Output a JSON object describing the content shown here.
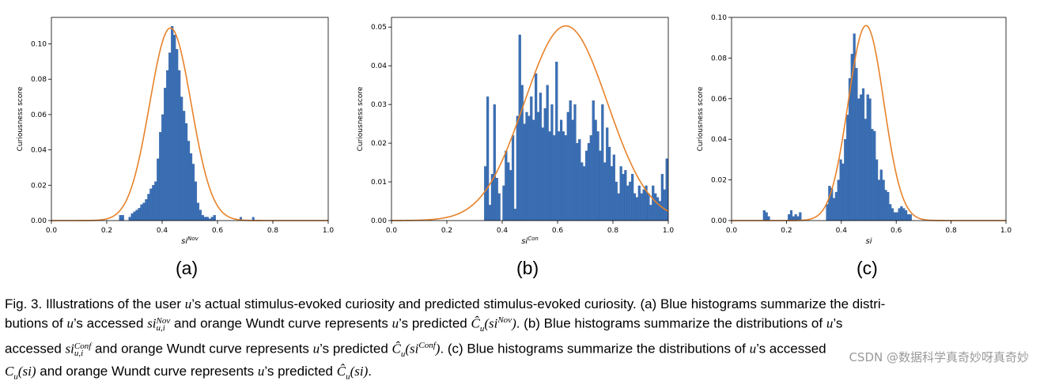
{
  "chart_data": [
    {
      "type": "bar",
      "panel": "(a)",
      "ylabel": "Curiousness score",
      "xlabel_base": "si",
      "xlabel_sup": "Nov",
      "xlim": [
        0.0,
        1.0
      ],
      "ylim": [
        0.0,
        0.115
      ],
      "xticks": [
        "0.0",
        "0.2",
        "0.4",
        "0.6",
        "0.8",
        "1.0"
      ],
      "yticks": [
        "0.00",
        "0.02",
        "0.04",
        "0.06",
        "0.08",
        "0.10"
      ],
      "hist_x0": 0.245,
      "bin_width": 0.0085,
      "hist_values": [
        0.003,
        0.003,
        0,
        0,
        0.002,
        0.004,
        0.005,
        0.006,
        0.007,
        0.009,
        0.01,
        0.012,
        0.015,
        0.018,
        0.02,
        0.022,
        0.035,
        0.05,
        0.06,
        0.075,
        0.085,
        0.095,
        0.11,
        0.105,
        0.097,
        0.085,
        0.07,
        0.062,
        0.055,
        0.045,
        0.038,
        0.032,
        0.022,
        0.01,
        0.006,
        0.003,
        0.002,
        0.002,
        0.001,
        0.002,
        0.003
      ],
      "extra_bars": [
        {
          "x": 0.68,
          "v": 0.002
        },
        {
          "x": 0.725,
          "v": 0.002
        }
      ],
      "curve": {
        "peak": 0.109,
        "mu": 0.43,
        "sigma": 0.075
      }
    },
    {
      "type": "bar",
      "panel": "(b)",
      "ylabel": "Curiousness score",
      "xlabel_base": "si",
      "xlabel_sup": "Con",
      "xlim": [
        0.0,
        1.0
      ],
      "ylim": [
        0.0,
        0.0525
      ],
      "xticks": [
        "0.0",
        "0.2",
        "0.4",
        "0.6",
        "0.8",
        "1.0"
      ],
      "yticks": [
        "0.00",
        "0.01",
        "0.02",
        "0.03",
        "0.04",
        "0.05"
      ],
      "hist_x0": 0.335,
      "bin_width": 0.0083,
      "hist_values": [
        0.014,
        0.032,
        0.004,
        0.012,
        0.03,
        0.011,
        0.007,
        0.0,
        0.009,
        0.018,
        0.015,
        0.013,
        0.022,
        0.003,
        0.027,
        0.048,
        0.035,
        0.025,
        0.028,
        0.027,
        0.032,
        0.026,
        0.038,
        0.028,
        0.033,
        0.024,
        0.029,
        0.035,
        0.023,
        0.03,
        0.022,
        0.041,
        0.023,
        0.026,
        0.023,
        0.022,
        0.028,
        0.031,
        0.026,
        0.03,
        0.02,
        0.021,
        0.015,
        0.014,
        0.018,
        0.02,
        0.022,
        0.031,
        0.026,
        0.023,
        0.018,
        0.03,
        0.015,
        0.024,
        0.019,
        0.014,
        0.017,
        0.01,
        0.007,
        0.014,
        0.012,
        0.013,
        0.009,
        0.01,
        0.012,
        0.007,
        0.006,
        0.009,
        0.007,
        0.008,
        0.009,
        0.007,
        0.004,
        0.009,
        0.007,
        0.006,
        0.005,
        0.012,
        0.008,
        0.016
      ],
      "curve": {
        "peak": 0.0503,
        "mu": 0.63,
        "sigma": 0.15
      }
    },
    {
      "type": "bar",
      "panel": "(c)",
      "ylabel": "Curiousness score",
      "xlabel_base": "si",
      "xlabel_sup": "",
      "xlim": [
        0.0,
        1.0
      ],
      "ylim": [
        0.0,
        0.1
      ],
      "xticks": [
        "0.0",
        "0.2",
        "0.4",
        "0.6",
        "0.8",
        "1.0"
      ],
      "yticks": [
        "0.00",
        "0.02",
        "0.04",
        "0.06",
        "0.08",
        "0.10"
      ],
      "hist_x0": 0.115,
      "bin_width": 0.0082,
      "hist_values": [
        0.005,
        0.004,
        0.002,
        0,
        0,
        0,
        0,
        0,
        0,
        0,
        0,
        0.003,
        0.005,
        0.002,
        0.003,
        0.002,
        0.004,
        0,
        0,
        0,
        0,
        0,
        0,
        0,
        0,
        0,
        0,
        0,
        0.008,
        0.017,
        0.016,
        0.011,
        0.014,
        0.02,
        0.03,
        0.028,
        0.04,
        0.052,
        0.07,
        0.082,
        0.092,
        0.075,
        0.06,
        0.062,
        0.065,
        0.05,
        0.062,
        0.06,
        0.045,
        0.044,
        0.03,
        0.02,
        0.025,
        0.02,
        0.015,
        0.014,
        0.008,
        0.006,
        0.004,
        0.004,
        0.006,
        0.007,
        0.006,
        0.005,
        0.003,
        0.003
      ],
      "curve": {
        "peak": 0.096,
        "mu": 0.49,
        "sigma": 0.065
      }
    }
  ],
  "panel_labels": [
    "(a)",
    "(b)",
    "(c)"
  ],
  "caption": {
    "l1_a": "Fig. 3. Illustrations of the user ",
    "l1_u": "u",
    "l1_b": "’s actual stimulus-evoked curiosity and predicted stimulus-evoked curiosity. (a) Blue histograms summarize the distri-",
    "l2_a": "butions of ",
    "l2_u": "u",
    "l2_b": "’s accessed ",
    "l2_si": "si",
    "l2_sup": "Nov",
    "l2_sub": "u,i",
    "l2_c": " and orange Wundt curve represents ",
    "l2_u2": "u",
    "l2_d": "’s predicted ",
    "l2_ch": "Ĉ",
    "l2_chsub": "u",
    "l2_arg": "(si",
    "l2_argsup": "Nov",
    "l2_close": ")",
    "l2_e": ". (b) Blue histograms summarize the distributions of ",
    "l2_u3": "u",
    "l2_f": "’s",
    "l3_a": "accessed ",
    "l3_si": "si",
    "l3_sup": "Conf",
    "l3_sub": "u,i",
    "l3_b": " and orange Wundt curve represents ",
    "l3_u": "u",
    "l3_c": "’s predicted ",
    "l3_ch": "Ĉ",
    "l3_chsub": "u",
    "l3_arg": "(si",
    "l3_argsup": "Conf",
    "l3_close": ")",
    "l3_d": ". (c) Blue histograms summarize the distributions of ",
    "l3_u2": "u",
    "l3_e": "’s accessed",
    "l4_c": "C",
    "l4_csub": "u",
    "l4_arg": "(si)",
    "l4_a": " and orange Wundt curve represents ",
    "l4_u": "u",
    "l4_b": "’s predicted ",
    "l4_ch": "Ĉ",
    "l4_chsub": "u",
    "l4_arg2": "(si)",
    "l4_end": "."
  },
  "watermark": "CSDN @数据科学真奇妙呀真奇妙",
  "colors": {
    "bar": "#3a6fb5",
    "curve": "#e8822a",
    "axis": "#000000"
  }
}
